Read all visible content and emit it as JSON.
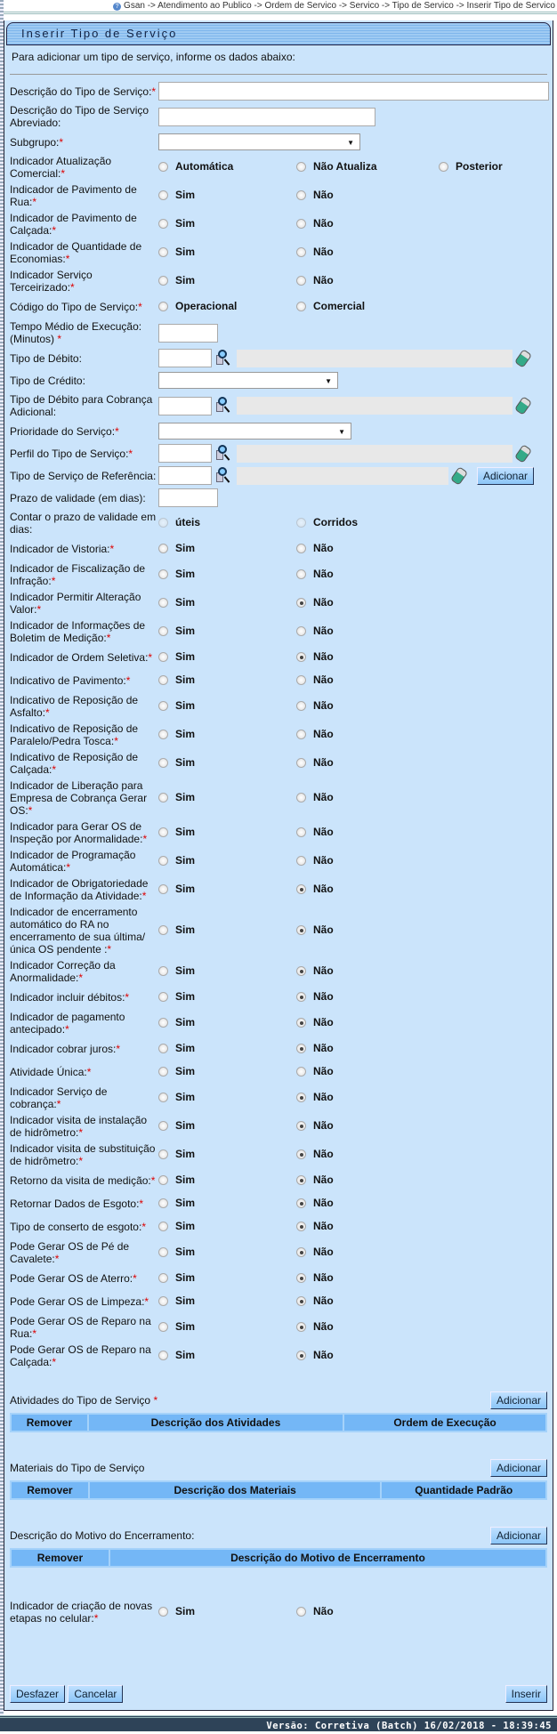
{
  "breadcrumb": "Gsan -> Atendimento ao Publico -> Ordem de Servico -> Servico -> Tipo de Servico -> Inserir Tipo de Servico",
  "title": "Inserir Tipo de Serviço",
  "intro": "Para adicionar um tipo de serviço, informe os dados abaixo:",
  "rows": [
    {
      "type": "text",
      "label": "Descrição do Tipo de Serviço:",
      "req": true,
      "value": "",
      "w": 439
    },
    {
      "type": "text",
      "label": "Descrição do Tipo de Serviço Abreviado:",
      "req": false,
      "value": "",
      "w": 244
    },
    {
      "type": "select",
      "label": "Subgrupo:",
      "req": true,
      "value": "",
      "w": 227
    },
    {
      "type": "radio",
      "label": "Indicador Atualização Comercial:",
      "req": true,
      "options": [
        "Automática",
        "Não Atualiza",
        "Posterior"
      ],
      "selected": null
    },
    {
      "type": "radio",
      "label": "Indicador de Pavimento de Rua:",
      "req": true,
      "options": [
        "Sim",
        "Não"
      ],
      "selected": null
    },
    {
      "type": "radio",
      "label": "Indicador de Pavimento de Calçada:",
      "req": true,
      "options": [
        "Sim",
        "Não"
      ],
      "selected": null
    },
    {
      "type": "radio",
      "label": "Indicador de Quantidade de Economias:",
      "req": true,
      "options": [
        "Sim",
        "Não"
      ],
      "selected": null
    },
    {
      "type": "radio",
      "label": "Indicador Serviço Terceirizado:",
      "req": true,
      "options": [
        "Sim",
        "Não"
      ],
      "selected": null
    },
    {
      "type": "radio",
      "label": "Código do Tipo de Serviço:",
      "req": true,
      "options": [
        "Operacional",
        "Comercial"
      ],
      "selected": null
    },
    {
      "type": "text",
      "label": "Tempo Médio de Execução: (Minutos) ",
      "req": true,
      "value": "",
      "w": 67
    },
    {
      "type": "lookup",
      "label": "Tipo de Débito:",
      "req": false,
      "value": "",
      "desc": ""
    },
    {
      "type": "select",
      "label": "Tipo de Crédito:",
      "req": false,
      "value": "",
      "w": 202
    },
    {
      "type": "lookup",
      "label": "Tipo de Débito para Cobrança Adicional:",
      "req": false,
      "value": "",
      "desc": ""
    },
    {
      "type": "select",
      "label": "Prioridade do Serviço:",
      "req": true,
      "value": "",
      "w": 217
    },
    {
      "type": "lookup",
      "label": "Perfil do Tipo de Serviço:",
      "req": true,
      "value": "",
      "desc": ""
    },
    {
      "type": "lookup",
      "label": "Tipo de Serviço de Referência:",
      "req": false,
      "value": "",
      "desc": "",
      "button": "Adicionar"
    },
    {
      "type": "text",
      "label": "Prazo de validade (em dias):",
      "req": false,
      "value": "",
      "w": 67
    },
    {
      "type": "radio",
      "label": "Contar o prazo de validade em dias:",
      "req": false,
      "options": [
        "úteis",
        "Corridos"
      ],
      "selected": null,
      "disabled": true
    },
    {
      "type": "radio",
      "label": "Indicador de Vistoria:",
      "req": true,
      "options": [
        "Sim",
        "Não"
      ],
      "selected": null
    },
    {
      "type": "radio",
      "label": "Indicador de Fiscalização de Infração:",
      "req": true,
      "options": [
        "Sim",
        "Não"
      ],
      "selected": null
    },
    {
      "type": "radio",
      "label": "Indicador Permitir Alteração Valor:",
      "req": true,
      "options": [
        "Sim",
        "Não"
      ],
      "selected": 1
    },
    {
      "type": "radio",
      "label": "Indicador de Informações de Boletim de Medição:",
      "req": true,
      "options": [
        "Sim",
        "Não"
      ],
      "selected": null
    },
    {
      "type": "radio",
      "label": "Indicador de Ordem Seletiva:",
      "req": true,
      "options": [
        "Sim",
        "Não"
      ],
      "selected": 1
    },
    {
      "type": "radio",
      "label": "Indicativo de Pavimento:",
      "req": true,
      "options": [
        "Sim",
        "Não"
      ],
      "selected": null
    },
    {
      "type": "radio",
      "label": "Indicativo de Reposição de Asfalto:",
      "req": true,
      "options": [
        "Sim",
        "Não"
      ],
      "selected": null
    },
    {
      "type": "radio",
      "label": "Indicativo de Reposição de Paralelo/Pedra Tosca:",
      "req": true,
      "options": [
        "Sim",
        "Não"
      ],
      "selected": null
    },
    {
      "type": "radio",
      "label": "Indicativo de Reposição de Calçada:",
      "req": true,
      "options": [
        "Sim",
        "Não"
      ],
      "selected": null
    },
    {
      "type": "radio",
      "label": "Indicador de Liberação para Empresa de Cobrança Gerar OS:",
      "req": true,
      "options": [
        "Sim",
        "Não"
      ],
      "selected": null
    },
    {
      "type": "radio",
      "label": "Indicador para Gerar OS de Inspeção por Anormalidade:",
      "req": true,
      "options": [
        "Sim",
        "Não"
      ],
      "selected": null
    },
    {
      "type": "radio",
      "label": "Indicador de Programação Automática:",
      "req": true,
      "options": [
        "Sim",
        "Não"
      ],
      "selected": null
    },
    {
      "type": "radio",
      "label": "Indicador de Obrigatoriedade de Informação da Atividade:",
      "req": true,
      "options": [
        "Sim",
        "Não"
      ],
      "selected": 1
    },
    {
      "type": "radio",
      "label": "Indicador de encerramento automático do RA no encerramento de sua última/única OS pendente :",
      "req": true,
      "options": [
        "Sim",
        "Não"
      ],
      "selected": 1
    },
    {
      "type": "radio",
      "label": "Indicador Correção da Anormalidade:",
      "req": true,
      "options": [
        "Sim",
        "Não"
      ],
      "selected": 1
    },
    {
      "type": "radio",
      "label": "Indicador incluir débitos:",
      "req": true,
      "options": [
        "Sim",
        "Não"
      ],
      "selected": 1
    },
    {
      "type": "radio",
      "label": "Indicador de pagamento antecipado:",
      "req": true,
      "options": [
        "Sim",
        "Não"
      ],
      "selected": 1
    },
    {
      "type": "radio",
      "label": "Indicador cobrar juros:",
      "req": true,
      "options": [
        "Sim",
        "Não"
      ],
      "selected": 1
    },
    {
      "type": "radio",
      "label": "Atividade Única:",
      "req": true,
      "options": [
        "Sim",
        "Não"
      ],
      "selected": null
    },
    {
      "type": "radio",
      "label": "Indicador Serviço de cobrança:",
      "req": true,
      "options": [
        "Sim",
        "Não"
      ],
      "selected": 1
    },
    {
      "type": "radio",
      "label": "Indicador visita de instalação de hidrômetro:",
      "req": true,
      "options": [
        "Sim",
        "Não"
      ],
      "selected": 1
    },
    {
      "type": "radio",
      "label": "Indicador visita de substituição de hidrômetro:",
      "req": true,
      "options": [
        "Sim",
        "Não"
      ],
      "selected": 1
    },
    {
      "type": "radio",
      "label": "Retorno da visita de medição:",
      "req": true,
      "options": [
        "Sim",
        "Não"
      ],
      "selected": 1
    },
    {
      "type": "radio",
      "label": "Retornar Dados de Esgoto:",
      "req": true,
      "options": [
        "Sim",
        "Não"
      ],
      "selected": 1
    },
    {
      "type": "radio",
      "label": "Tipo de conserto de esgoto:",
      "req": true,
      "options": [
        "Sim",
        "Não"
      ],
      "selected": 1
    },
    {
      "type": "radio",
      "label": "Pode Gerar OS de Pé de Cavalete:",
      "req": true,
      "options": [
        "Sim",
        "Não"
      ],
      "selected": 1
    },
    {
      "type": "radio",
      "label": "Pode Gerar OS de Aterro:",
      "req": true,
      "options": [
        "Sim",
        "Não"
      ],
      "selected": 1
    },
    {
      "type": "radio",
      "label": "Pode Gerar OS de Limpeza:",
      "req": true,
      "options": [
        "Sim",
        "Não"
      ],
      "selected": 1
    },
    {
      "type": "radio",
      "label": "Pode Gerar OS de Reparo na Rua:",
      "req": true,
      "options": [
        "Sim",
        "Não"
      ],
      "selected": 1
    },
    {
      "type": "radio",
      "label": "Pode Gerar OS de Reparo na Calçada:",
      "req": true,
      "options": [
        "Sim",
        "Não"
      ],
      "selected": 1
    }
  ],
  "sections": [
    {
      "label": "Atividades do Tipo de Serviço ",
      "req": true,
      "button": "Adicionar",
      "columns": [
        "Remover",
        "Descrição dos Atividades",
        "Ordem de Execução"
      ]
    },
    {
      "label": "Materiais do Tipo de Serviço",
      "req": false,
      "button": "Adicionar",
      "columns": [
        "Remover",
        "Descrição dos Materiais",
        "Quantidade Padrão"
      ]
    },
    {
      "label": "Descrição do Motivo do Encerramento:",
      "req": false,
      "button": "Adicionar",
      "columns": [
        "Remover",
        "Descrição do Motivo de Encerramento"
      ]
    }
  ],
  "final_indicator": {
    "label": "Indicador de criação de novas etapas no celular:",
    "req": true,
    "options": [
      "Sim",
      "Não"
    ],
    "selected": null
  },
  "buttons": {
    "undo": "Desfazer",
    "cancel": "Cancelar",
    "insert": "Inserir"
  },
  "footer": "Versão: Corretiva (Batch) 16/02/2018 - 18:39:45"
}
